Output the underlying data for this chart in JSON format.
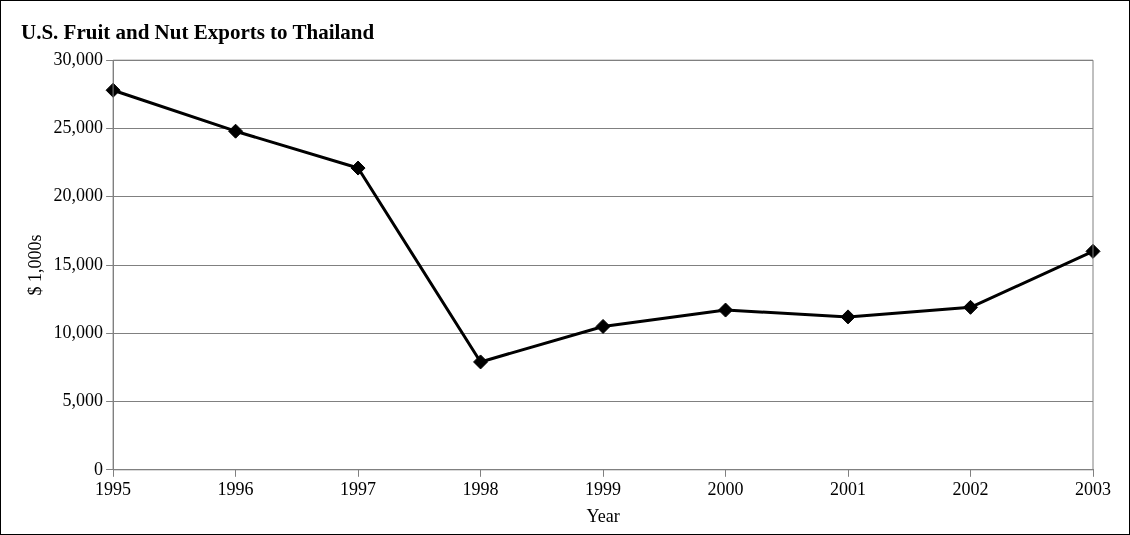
{
  "chart_data": {
    "type": "line",
    "title": "U.S. Fruit and Nut Exports to Thailand",
    "xlabel": "Year",
    "ylabel": "$ 1,000s",
    "categories": [
      "1995",
      "1996",
      "1997",
      "1998",
      "1999",
      "2000",
      "2001",
      "2002",
      "2003"
    ],
    "series": [
      {
        "color": "#000000",
        "values": [
          27800,
          24800,
          22100,
          7900,
          10500,
          11700,
          11200,
          11900,
          16000
        ]
      }
    ],
    "ylim": [
      0,
      30000
    ],
    "yticks": [
      0,
      {
        "value": 5000,
        "label": "5,000"
      },
      {
        "value": 10000,
        "label": "10,000"
      },
      {
        "value": 15000,
        "label": "15,000"
      },
      {
        "value": 20000,
        "label": "20,000"
      },
      {
        "value": 25000,
        "label": "25,000"
      },
      {
        "value": 30000,
        "label": "30,000"
      }
    ],
    "grid": "y",
    "legend": false,
    "marker": "diamond",
    "line_style": "solid"
  }
}
